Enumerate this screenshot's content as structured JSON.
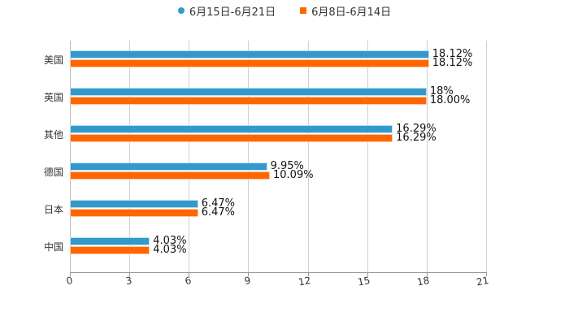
{
  "chart_data": {
    "type": "bar",
    "orientation": "horizontal",
    "title": "",
    "xlabel": "",
    "ylabel": "",
    "xlim": [
      0,
      21
    ],
    "xticks": [
      "0",
      "3",
      "6",
      "9",
      "12",
      "15",
      "18",
      "21"
    ],
    "grid": true,
    "legend_position": "top",
    "categories": [
      "美国",
      "英国",
      "其他",
      "德国",
      "日本",
      "中国"
    ],
    "series": [
      {
        "name": "6月15日-6月21日",
        "color": "#3399cc",
        "values": [
          18.12,
          18,
          16.29,
          9.95,
          6.47,
          4.03
        ],
        "labels": [
          "18.12%",
          "18%",
          "16.29%",
          "9.95%",
          "6.47%",
          "4.03%"
        ]
      },
      {
        "name": "6月8日-6月14日",
        "color": "#ff6600",
        "values": [
          18.12,
          18.0,
          16.29,
          10.09,
          6.47,
          4.03
        ],
        "labels": [
          "18.12%",
          "18.00%",
          "16.29%",
          "10.09%",
          "6.47%",
          "4.03%"
        ]
      }
    ]
  },
  "legend": {
    "s1": "6月15日-6月21日",
    "s2": "6月8日-6月14日"
  }
}
